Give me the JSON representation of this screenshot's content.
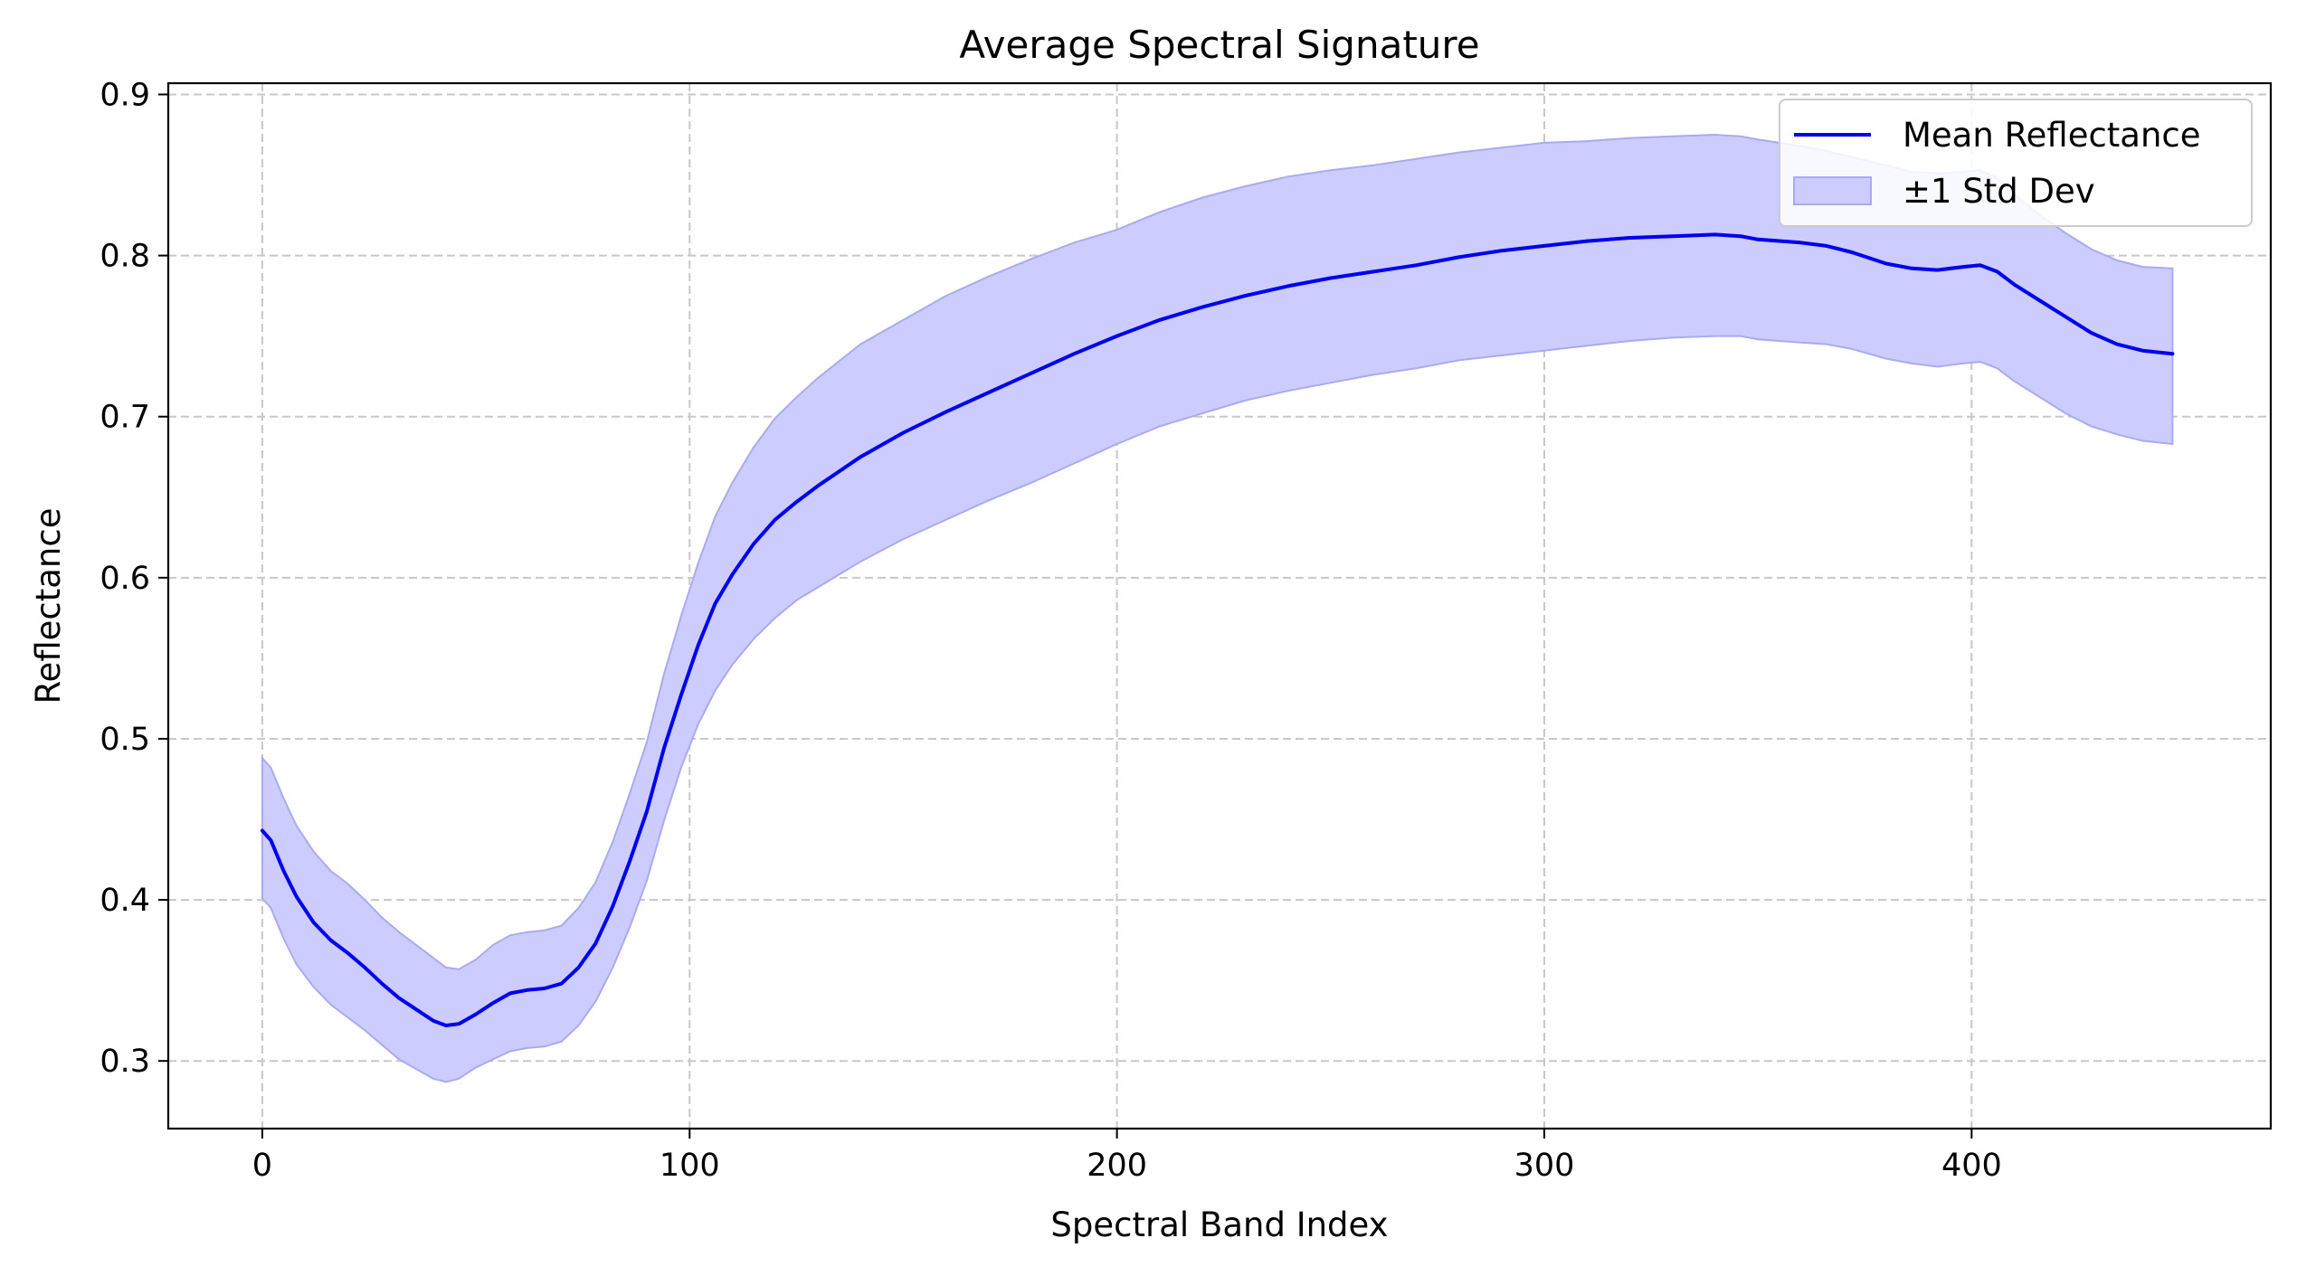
{
  "chart_data": {
    "type": "line",
    "title": "Average Spectral Signature",
    "xlabel": "Spectral Band Index",
    "ylabel": "Reflectance",
    "xlim": [
      -22,
      470
    ],
    "ylim": [
      0.258,
      0.907
    ],
    "x_ticks": [
      {
        "value": 0,
        "label": "0"
      },
      {
        "value": 100,
        "label": "100"
      },
      {
        "value": 200,
        "label": "200"
      },
      {
        "value": 300,
        "label": "300"
      },
      {
        "value": 400,
        "label": "400"
      }
    ],
    "y_ticks": [
      {
        "value": 0.3,
        "label": "0.3"
      },
      {
        "value": 0.4,
        "label": "0.4"
      },
      {
        "value": 0.5,
        "label": "0.5"
      },
      {
        "value": 0.6,
        "label": "0.6"
      },
      {
        "value": 0.7,
        "label": "0.7"
      },
      {
        "value": 0.8,
        "label": "0.8"
      },
      {
        "value": 0.9,
        "label": "0.9"
      }
    ],
    "grid": true,
    "legend_position": "top-right",
    "colors": {
      "line": "#0000ee",
      "band_fill": "#ccccff",
      "band_edge": "#aaaaf0",
      "grid": "#c8c8c8"
    },
    "series": [
      {
        "name": "Mean Reflectance",
        "kind": "line",
        "x": [
          0,
          2,
          5,
          8,
          12,
          16,
          20,
          24,
          28,
          32,
          36,
          40,
          43,
          46,
          50,
          54,
          58,
          62,
          66,
          70,
          74,
          78,
          82,
          86,
          90,
          94,
          98,
          102,
          106,
          110,
          115,
          120,
          125,
          130,
          140,
          150,
          160,
          170,
          180,
          190,
          200,
          210,
          220,
          230,
          240,
          250,
          260,
          270,
          280,
          290,
          300,
          310,
          320,
          330,
          340,
          346,
          350,
          360,
          366,
          372,
          380,
          386,
          392,
          398,
          402,
          406,
          410,
          416,
          422,
          428,
          434,
          440,
          447
        ],
        "values": [
          0.443,
          0.437,
          0.418,
          0.402,
          0.386,
          0.375,
          0.367,
          0.358,
          0.348,
          0.339,
          0.332,
          0.325,
          0.322,
          0.323,
          0.329,
          0.336,
          0.342,
          0.344,
          0.345,
          0.348,
          0.358,
          0.373,
          0.396,
          0.424,
          0.455,
          0.494,
          0.527,
          0.558,
          0.584,
          0.602,
          0.621,
          0.636,
          0.647,
          0.657,
          0.675,
          0.69,
          0.703,
          0.715,
          0.727,
          0.739,
          0.75,
          0.76,
          0.768,
          0.775,
          0.781,
          0.786,
          0.79,
          0.794,
          0.799,
          0.803,
          0.806,
          0.809,
          0.811,
          0.812,
          0.813,
          0.812,
          0.81,
          0.808,
          0.806,
          0.802,
          0.795,
          0.792,
          0.791,
          0.793,
          0.794,
          0.79,
          0.782,
          0.772,
          0.762,
          0.752,
          0.745,
          0.741,
          0.739
        ]
      },
      {
        "name": "±1 Std Dev",
        "kind": "band",
        "x": [
          0,
          2,
          5,
          8,
          12,
          16,
          20,
          24,
          28,
          32,
          36,
          40,
          43,
          46,
          50,
          54,
          58,
          62,
          66,
          70,
          74,
          78,
          82,
          86,
          90,
          94,
          98,
          102,
          106,
          110,
          115,
          120,
          125,
          130,
          140,
          150,
          160,
          170,
          180,
          190,
          200,
          210,
          220,
          230,
          240,
          250,
          260,
          270,
          280,
          290,
          300,
          310,
          320,
          330,
          340,
          346,
          350,
          360,
          366,
          372,
          380,
          386,
          392,
          398,
          402,
          406,
          410,
          416,
          422,
          428,
          434,
          440,
          447
        ],
        "upper": [
          0.488,
          0.482,
          0.463,
          0.446,
          0.43,
          0.418,
          0.41,
          0.4,
          0.389,
          0.38,
          0.372,
          0.364,
          0.358,
          0.357,
          0.363,
          0.372,
          0.378,
          0.38,
          0.381,
          0.384,
          0.395,
          0.411,
          0.436,
          0.466,
          0.498,
          0.54,
          0.576,
          0.609,
          0.638,
          0.659,
          0.681,
          0.699,
          0.712,
          0.724,
          0.745,
          0.76,
          0.775,
          0.787,
          0.798,
          0.808,
          0.816,
          0.827,
          0.836,
          0.843,
          0.849,
          0.853,
          0.856,
          0.86,
          0.864,
          0.867,
          0.87,
          0.871,
          0.873,
          0.874,
          0.875,
          0.874,
          0.872,
          0.868,
          0.865,
          0.861,
          0.856,
          0.852,
          0.851,
          0.852,
          0.853,
          0.848,
          0.838,
          0.825,
          0.814,
          0.804,
          0.797,
          0.793,
          0.792
        ],
        "lower": [
          0.401,
          0.395,
          0.376,
          0.36,
          0.346,
          0.335,
          0.327,
          0.319,
          0.31,
          0.301,
          0.295,
          0.289,
          0.287,
          0.289,
          0.296,
          0.301,
          0.306,
          0.308,
          0.309,
          0.312,
          0.322,
          0.337,
          0.358,
          0.383,
          0.412,
          0.449,
          0.482,
          0.509,
          0.53,
          0.546,
          0.562,
          0.575,
          0.586,
          0.594,
          0.61,
          0.624,
          0.636,
          0.648,
          0.659,
          0.671,
          0.683,
          0.694,
          0.702,
          0.71,
          0.716,
          0.721,
          0.726,
          0.73,
          0.735,
          0.738,
          0.741,
          0.744,
          0.747,
          0.749,
          0.75,
          0.75,
          0.748,
          0.746,
          0.745,
          0.742,
          0.736,
          0.733,
          0.731,
          0.733,
          0.734,
          0.73,
          0.722,
          0.712,
          0.702,
          0.694,
          0.689,
          0.685,
          0.683
        ]
      }
    ]
  }
}
